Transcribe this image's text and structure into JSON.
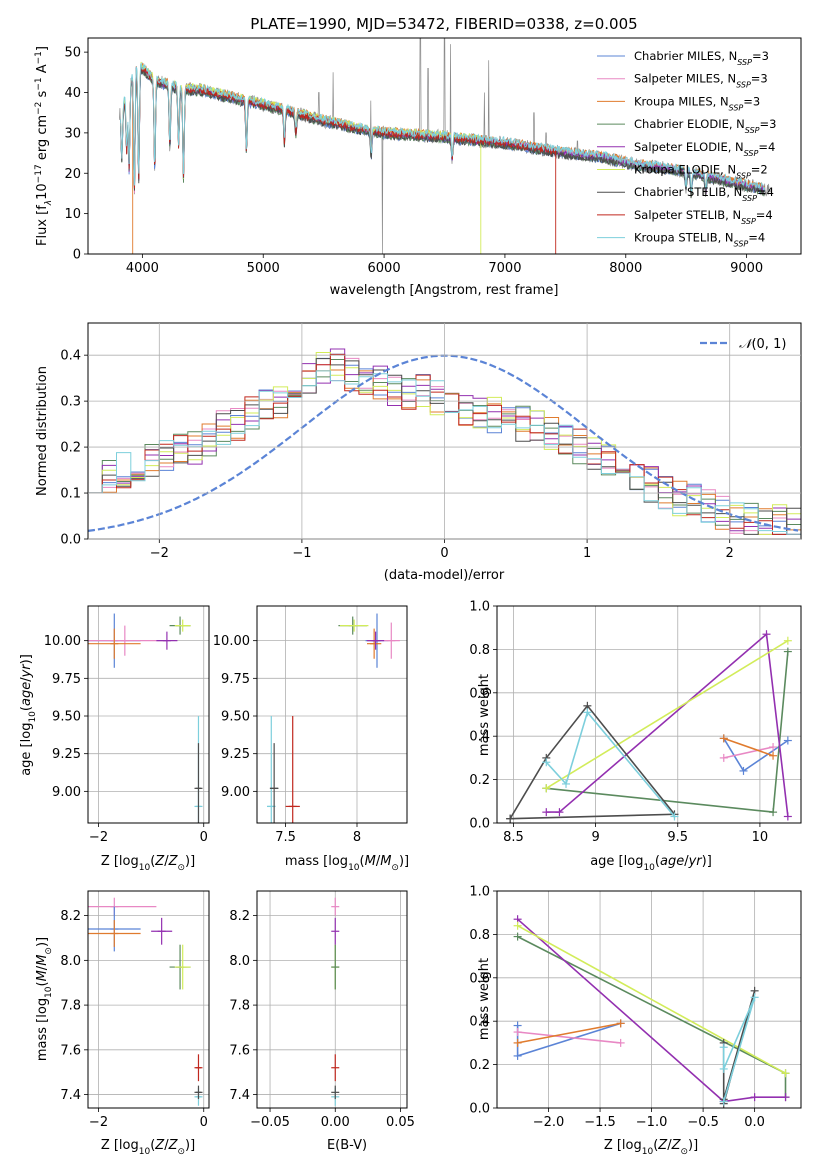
{
  "colors": {
    "chabrier_miles": "#5b84d6",
    "salpeter_miles": "#e888c4",
    "kroupa_miles": "#e07b2e",
    "chabrier_elodie": "#5b8a5e",
    "salpeter_elodie": "#9330b0",
    "kroupa_elodie": "#d2ec5a",
    "chabrier_stelib": "#4d4d4d",
    "salpeter_stelib": "#c0281f",
    "kroupa_stelib": "#7dcfdc",
    "normal_curve": "#5b84d6",
    "grid": "#b0b0b0"
  },
  "chart_data": [
    {
      "id": "spectrum",
      "type": "line",
      "title": "PLATE=1990, MJD=53472, FIBERID=0338, z=0.005",
      "xlabel": "wavelength [Angstrom, rest frame]",
      "ylabel": "Flux [f_λ 10^-17 erg cm^-2 s^-1 A^-1]",
      "xlim": [
        3550,
        9450
      ],
      "ylim": [
        0,
        53.5
      ],
      "xticks": [
        4000,
        5000,
        6000,
        7000,
        8000,
        9000
      ],
      "yticks": [
        0,
        10,
        20,
        30,
        40,
        50
      ],
      "grid": false,
      "legend_position": "top-right",
      "continuum": {
        "x": [
          3820,
          3900,
          3950,
          4000,
          4100,
          4200,
          4300,
          4500,
          4700,
          5000,
          5200,
          5500,
          5800,
          6000,
          6200,
          6500,
          6800,
          7000,
          7200,
          7500,
          7800,
          8100,
          8400,
          8700,
          9000,
          9150
        ],
        "y": [
          35,
          42,
          47,
          46,
          43,
          42,
          41,
          40.5,
          39,
          37,
          35.5,
          33,
          31,
          30,
          29.5,
          29,
          28,
          27.5,
          26.5,
          25,
          24,
          22,
          21,
          19,
          17,
          16
        ]
      },
      "absorption_lines": [
        {
          "x": 3830,
          "depth": 12
        },
        {
          "x": 3870,
          "depth": 14
        },
        {
          "x": 3890,
          "depth": 20
        },
        {
          "x": 3934,
          "depth": 30
        },
        {
          "x": 3969,
          "depth": 28
        },
        {
          "x": 4102,
          "depth": 22
        },
        {
          "x": 4227,
          "depth": 15
        },
        {
          "x": 4300,
          "depth": 14
        },
        {
          "x": 4340,
          "depth": 22
        },
        {
          "x": 4861,
          "depth": 12
        },
        {
          "x": 5175,
          "depth": 8
        },
        {
          "x": 5270,
          "depth": 5
        },
        {
          "x": 5893,
          "depth": 6
        },
        {
          "x": 6563,
          "depth": 5
        },
        {
          "x": 8498,
          "depth": 4
        },
        {
          "x": 8542,
          "depth": 5
        },
        {
          "x": 8662,
          "depth": 4
        }
      ],
      "observed_spikes": [
        {
          "x": 5460,
          "height": 40
        },
        {
          "x": 5577,
          "height": 45
        },
        {
          "x": 5890,
          "height": 38
        },
        {
          "x": 6300,
          "height": 60
        },
        {
          "x": 6364,
          "height": 46
        },
        {
          "x": 6500,
          "height": 60
        },
        {
          "x": 6550,
          "height": 52
        },
        {
          "x": 6830,
          "height": 40
        },
        {
          "x": 6865,
          "height": 48
        },
        {
          "x": 7240,
          "height": 35
        },
        {
          "x": 7340,
          "height": 30
        },
        {
          "x": 7600,
          "height": 28
        }
      ],
      "observed_dip": {
        "x": 5985,
        "value": 0
      },
      "truncations": [
        {
          "series": "Kroupa ELODIE",
          "x": 6800
        },
        {
          "series": "Salpeter STELIB",
          "x": 7420
        }
      ],
      "low_start": [
        {
          "series": "Kroupa MILES",
          "x": 3920,
          "value": 0
        }
      ],
      "series": [
        {
          "name": "Chabrier MILES, N_SSP=3",
          "key": "chabrier_miles"
        },
        {
          "name": "Salpeter MILES, N_SSP=3",
          "key": "salpeter_miles"
        },
        {
          "name": "Kroupa MILES, N_SSP=3",
          "key": "kroupa_miles"
        },
        {
          "name": "Chabrier ELODIE, N_SSP=3",
          "key": "chabrier_elodie"
        },
        {
          "name": "Salpeter ELODIE, N_SSP=4",
          "key": "salpeter_elodie"
        },
        {
          "name": "Kroupa ELODIE, N_SSP=2",
          "key": "kroupa_elodie"
        },
        {
          "name": "Chabrier STELIB, N_SSP=4",
          "key": "chabrier_stelib"
        },
        {
          "name": "Salpeter STELIB, N_SSP=4",
          "key": "salpeter_stelib"
        },
        {
          "name": "Kroupa STELIB, N_SSP=4",
          "key": "kroupa_stelib"
        }
      ]
    },
    {
      "id": "residuals",
      "type": "line",
      "xlabel": "(data-model)/error",
      "ylabel": "Normed distribution",
      "xlim": [
        -2.5,
        2.5
      ],
      "ylim": [
        0,
        0.47
      ],
      "xticks": [
        -2,
        -1,
        0,
        1,
        2
      ],
      "yticks": [
        0.0,
        0.1,
        0.2,
        0.3,
        0.4
      ],
      "grid": true,
      "legend_position": "top-right",
      "normal_label": "N(0,1)",
      "bin_edges_start": -2.5,
      "bin_width": 0.1,
      "histogram_base": [
        0.14,
        0.14,
        0.15,
        0.16,
        0.17,
        0.18,
        0.19,
        0.2,
        0.22,
        0.24,
        0.25,
        0.27,
        0.29,
        0.3,
        0.33,
        0.35,
        0.37,
        0.38,
        0.36,
        0.35,
        0.34,
        0.33,
        0.32,
        0.32,
        0.31,
        0.3,
        0.28,
        0.28,
        0.27,
        0.26,
        0.25,
        0.24,
        0.23,
        0.22,
        0.2,
        0.19,
        0.17,
        0.16,
        0.14,
        0.12,
        0.1,
        0.09,
        0.08,
        0.07,
        0.06,
        0.05,
        0.045,
        0.04,
        0.035,
        0.03
      ]
    },
    {
      "id": "age_vs_z",
      "type": "scatter",
      "xlabel": "Z [log10(Z/Z_sun)]",
      "ylabel": "age [log10(age/yr)]",
      "xlim": [
        -2.2,
        0.1
      ],
      "ylim": [
        8.79,
        10.23
      ],
      "xticks": [
        -2,
        0
      ],
      "yticks": [
        9.0,
        9.25,
        9.5,
        9.75,
        10.0
      ],
      "grid": true,
      "points": [
        {
          "key": "kroupa_stelib",
          "x": -0.1,
          "y": 8.9,
          "xerr": 0.05,
          "yerr": 0.6
        },
        {
          "key": "chabrier_stelib",
          "x": -0.1,
          "y": 9.02,
          "xerr": 0.05,
          "yerr": 0.3
        },
        {
          "key": "chabrier_miles",
          "x": -1.7,
          "y": 10.0,
          "xerr": 0.5,
          "yerr": 0.18
        },
        {
          "key": "salpeter_miles",
          "x": -1.5,
          "y": 10.0,
          "xerr": 0.8,
          "yerr": 0.1
        },
        {
          "key": "kroupa_miles",
          "x": -1.7,
          "y": 9.98,
          "xerr": 0.5,
          "yerr": 0.1
        },
        {
          "key": "salpeter_elodie",
          "x": -0.7,
          "y": 10.0,
          "xerr": 0.2,
          "yerr": 0.06
        },
        {
          "key": "chabrier_elodie",
          "x": -0.45,
          "y": 10.1,
          "xerr": 0.2,
          "yerr": 0.06
        },
        {
          "key": "kroupa_elodie",
          "x": -0.4,
          "y": 10.1,
          "xerr": 0.15,
          "yerr": 0.04
        }
      ]
    },
    {
      "id": "age_vs_mass",
      "type": "scatter",
      "xlabel": "mass [log10(M/M_sun)]",
      "ylabel": "",
      "xlim": [
        7.3,
        8.35
      ],
      "ylim": [
        8.79,
        10.23
      ],
      "xticks": [
        7.5,
        8.0
      ],
      "yticks": [
        9.0,
        9.25,
        9.5,
        9.75,
        10.0
      ],
      "grid": true,
      "points": [
        {
          "key": "kroupa_stelib",
          "x": 7.4,
          "y": 8.9,
          "xerr": 0.03,
          "yerr": 0.6
        },
        {
          "key": "chabrier_stelib",
          "x": 7.42,
          "y": 9.02,
          "xerr": 0.03,
          "yerr": 0.3
        },
        {
          "key": "salpeter_stelib",
          "x": 7.55,
          "y": 8.9,
          "xerr": 0.05,
          "yerr": 0.6
        },
        {
          "key": "chabrier_miles",
          "x": 8.14,
          "y": 10.0,
          "xerr": 0.08,
          "yerr": 0.18
        },
        {
          "key": "salpeter_miles",
          "x": 8.24,
          "y": 10.0,
          "xerr": 0.06,
          "yerr": 0.12
        },
        {
          "key": "kroupa_miles",
          "x": 8.12,
          "y": 9.98,
          "xerr": 0.05,
          "yerr": 0.1
        },
        {
          "key": "salpeter_elodie",
          "x": 8.13,
          "y": 10.0,
          "xerr": 0.06,
          "yerr": 0.06
        },
        {
          "key": "chabrier_elodie",
          "x": 7.97,
          "y": 10.1,
          "xerr": 0.1,
          "yerr": 0.06
        },
        {
          "key": "kroupa_elodie",
          "x": 7.98,
          "y": 10.1,
          "xerr": 0.1,
          "yerr": 0.04
        }
      ]
    },
    {
      "id": "weight_vs_age",
      "type": "line",
      "xlabel": "age [log10(age/yr)]",
      "ylabel": "mass weight",
      "xlim": [
        8.4,
        10.25
      ],
      "ylim": [
        0,
        1.0
      ],
      "xticks": [
        8.5,
        9.0,
        9.5,
        10.0
      ],
      "yticks": [
        0.0,
        0.2,
        0.4,
        0.6,
        0.8,
        1.0
      ],
      "grid": true,
      "series": [
        {
          "key": "chabrier_miles",
          "x": [
            9.78,
            9.9,
            10.17
          ],
          "y": [
            0.39,
            0.24,
            0.38
          ]
        },
        {
          "key": "salpeter_miles",
          "x": [
            9.78,
            10.08
          ],
          "y": [
            0.3,
            0.35
          ]
        },
        {
          "key": "kroupa_miles",
          "x": [
            9.78,
            10.08
          ],
          "y": [
            0.39,
            0.31
          ]
        },
        {
          "key": "chabrier_elodie",
          "x": [
            8.7,
            10.08,
            10.17
          ],
          "y": [
            0.16,
            0.05,
            0.79
          ]
        },
        {
          "key": "salpeter_elodie",
          "x": [
            8.7,
            8.78,
            10.04,
            10.17
          ],
          "y": [
            0.05,
            0.05,
            0.87,
            0.03
          ]
        },
        {
          "key": "kroupa_elodie",
          "x": [
            8.7,
            10.17
          ],
          "y": [
            0.16,
            0.84
          ]
        },
        {
          "key": "chabrier_stelib",
          "x": [
            8.48,
            8.7,
            8.95,
            9.48,
            8.48
          ],
          "y": [
            0.02,
            0.3,
            0.54,
            0.04,
            0.02
          ]
        },
        {
          "key": "kroupa_stelib",
          "x": [
            8.7,
            8.82,
            8.95,
            9.48
          ],
          "y": [
            0.28,
            0.18,
            0.51,
            0.03
          ]
        }
      ]
    },
    {
      "id": "mass_vs_z",
      "type": "scatter",
      "xlabel": "Z [log10(Z/Z_sun)]",
      "ylabel": "mass [log10(M/M_sun)]",
      "xlim": [
        -2.2,
        0.1
      ],
      "ylim": [
        7.34,
        8.31
      ],
      "xticks": [
        -2,
        0
      ],
      "yticks": [
        7.4,
        7.6,
        7.8,
        8.0,
        8.2
      ],
      "grid": true,
      "points": [
        {
          "key": "kroupa_stelib",
          "x": -0.1,
          "y": 7.39,
          "xerr": 0.05,
          "yerr": 0.04
        },
        {
          "key": "chabrier_stelib",
          "x": -0.1,
          "y": 7.41,
          "xerr": 0.05,
          "yerr": 0.03
        },
        {
          "key": "salpeter_stelib",
          "x": -0.1,
          "y": 7.52,
          "xerr": 0.05,
          "yerr": 0.06
        },
        {
          "key": "salpeter_miles",
          "x": -1.7,
          "y": 8.24,
          "xerr": 0.8,
          "yerr": 0.04
        },
        {
          "key": "chabrier_miles",
          "x": -1.7,
          "y": 8.14,
          "xerr": 0.5,
          "yerr": 0.1
        },
        {
          "key": "kroupa_miles",
          "x": -1.7,
          "y": 8.12,
          "xerr": 0.5,
          "yerr": 0.06
        },
        {
          "key": "salpeter_elodie",
          "x": -0.8,
          "y": 8.13,
          "xerr": 0.2,
          "yerr": 0.06
        },
        {
          "key": "chabrier_elodie",
          "x": -0.45,
          "y": 7.97,
          "xerr": 0.2,
          "yerr": 0.1
        },
        {
          "key": "kroupa_elodie",
          "x": -0.4,
          "y": 7.97,
          "xerr": 0.15,
          "yerr": 0.1
        }
      ]
    },
    {
      "id": "mass_vs_ebv",
      "type": "scatter",
      "xlabel": "E(B-V)",
      "ylabel": "",
      "xlim": [
        -0.06,
        0.055
      ],
      "ylim": [
        7.34,
        8.31
      ],
      "xticks": [
        -0.05,
        0.0,
        0.05
      ],
      "xticklabels": [
        "−0.05",
        "0.00",
        "0.05"
      ],
      "yticks": [
        7.4,
        7.6,
        7.8,
        8.0,
        8.2
      ],
      "grid": true,
      "points": [
        {
          "key": "kroupa_stelib",
          "x": 0.0,
          "y": 7.39,
          "xerr": 0.0,
          "yerr": 0.04
        },
        {
          "key": "chabrier_stelib",
          "x": 0.0,
          "y": 7.41,
          "xerr": 0.0,
          "yerr": 0.03
        },
        {
          "key": "salpeter_stelib",
          "x": 0.0,
          "y": 7.52,
          "xerr": 0.0,
          "yerr": 0.06
        },
        {
          "key": "kroupa_elodie",
          "x": 0.0,
          "y": 7.97,
          "xerr": 0.0,
          "yerr": 0.1
        },
        {
          "key": "chabrier_elodie",
          "x": 0.0,
          "y": 7.97,
          "xerr": 0.0,
          "yerr": 0.1
        },
        {
          "key": "salpeter_elodie",
          "x": 0.0,
          "y": 8.13,
          "xerr": 0.0,
          "yerr": 0.06
        },
        {
          "key": "salpeter_miles",
          "x": 0.0,
          "y": 8.24,
          "xerr": 0.0,
          "yerr": 0.04
        }
      ]
    },
    {
      "id": "weight_vs_z",
      "type": "line",
      "xlabel": "Z [log10(Z/Z_sun)]",
      "ylabel": "mass weight",
      "xlim": [
        -2.5,
        0.45
      ],
      "ylim": [
        0,
        1.0
      ],
      "xticks": [
        -2.0,
        -1.5,
        -1.0,
        -0.5,
        0.0
      ],
      "xticklabels": [
        "−2.0",
        "−1.5",
        "−1.0",
        "−0.5",
        "0.0"
      ],
      "yticks": [
        0.0,
        0.2,
        0.4,
        0.6,
        0.8,
        1.0
      ],
      "grid": true,
      "series": [
        {
          "key": "chabrier_miles",
          "x": [
            -2.3,
            -2.3,
            -1.3
          ],
          "y": [
            0.38,
            0.24,
            0.39
          ]
        },
        {
          "key": "salpeter_miles",
          "x": [
            -2.3,
            -1.3
          ],
          "y": [
            0.35,
            0.3
          ]
        },
        {
          "key": "kroupa_miles",
          "x": [
            -2.3,
            -1.3
          ],
          "y": [
            0.3,
            0.39
          ]
        },
        {
          "key": "chabrier_elodie",
          "x": [
            -2.3,
            0.3,
            0.3
          ],
          "y": [
            0.79,
            0.16,
            0.05
          ]
        },
        {
          "key": "salpeter_elodie",
          "x": [
            -2.3,
            -0.3,
            0.0,
            0.3
          ],
          "y": [
            0.87,
            0.03,
            0.05,
            0.05
          ]
        },
        {
          "key": "kroupa_elodie",
          "x": [
            -2.3,
            0.3
          ],
          "y": [
            0.84,
            0.16
          ]
        },
        {
          "key": "chabrier_stelib",
          "x": [
            -0.3,
            -0.3,
            0.0,
            -0.3
          ],
          "y": [
            0.3,
            0.02,
            0.54,
            0.04
          ]
        },
        {
          "key": "kroupa_stelib",
          "x": [
            -0.3,
            -0.3,
            0.0,
            -0.3
          ],
          "y": [
            0.28,
            0.18,
            0.51,
            0.03
          ]
        }
      ]
    }
  ]
}
